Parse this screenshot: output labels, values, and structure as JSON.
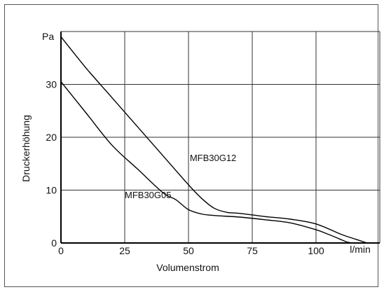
{
  "chart_data": {
    "type": "line",
    "title": "",
    "xlabel": "Volumenstrom",
    "ylabel": "Druckerhöhung",
    "x_unit": "l/min",
    "y_unit": "Pa",
    "xlim": [
      0,
      125
    ],
    "ylim": [
      0,
      40
    ],
    "xticks": [
      0,
      25,
      50,
      75,
      100
    ],
    "yticks": [
      0,
      10,
      20,
      30
    ],
    "grid": true,
    "series": [
      {
        "name": "MFB30G12",
        "x": [
          0,
          10,
          20,
          30,
          40,
          50,
          55,
          60,
          65,
          70,
          80,
          90,
          100,
          110,
          115,
          120
        ],
        "y": [
          39,
          33,
          27.5,
          22,
          16.5,
          11,
          8.5,
          6.6,
          5.8,
          5.6,
          5.0,
          4.5,
          3.6,
          1.6,
          0.8,
          0
        ]
      },
      {
        "name": "MFB30G05",
        "x": [
          0,
          10,
          20,
          30,
          40,
          45,
          50,
          55,
          60,
          70,
          80,
          90,
          100,
          105,
          110,
          112,
          114
        ],
        "y": [
          30.5,
          24.5,
          18.5,
          14,
          9.5,
          8.2,
          6.3,
          5.5,
          5.2,
          4.9,
          4.4,
          3.8,
          2.5,
          1.6,
          0.6,
          0.2,
          0
        ]
      }
    ],
    "annotations": [
      {
        "text": "MFB30G12",
        "x": 50.5,
        "y": 15.5
      },
      {
        "text": "MFB30G05",
        "x": 25,
        "y": 8.5
      }
    ]
  }
}
